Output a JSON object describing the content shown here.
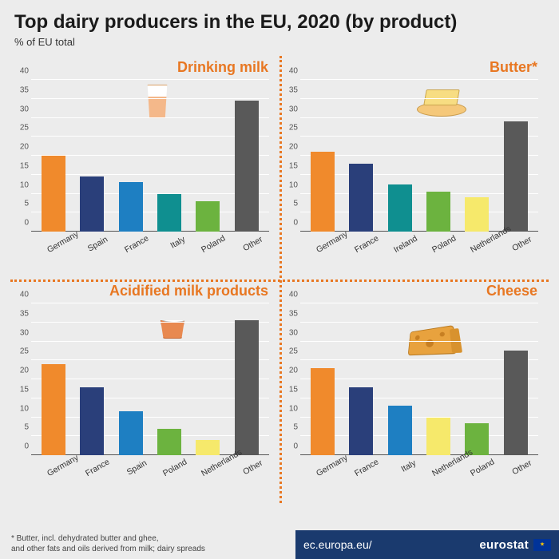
{
  "title": "Top dairy producers in the EU, 2020 (by product)",
  "subtitle": "% of EU total",
  "footnote_l1": "* Butter, incl. dehydrated butter and ghee,",
  "footnote_l2": "and other fats and oils derived from milk; dairy spreads",
  "source_url": "ec.europa.eu/",
  "source_brand": "eurostat",
  "accent_color": "#e87722",
  "grid_color": "#ffffff",
  "background_color": "#ececec",
  "bar_palette": {
    "orange": "#f08a2c",
    "darkblue": "#2a3f7a",
    "midblue": "#1e7fc2",
    "teal": "#0f8f90",
    "green": "#6cb33f",
    "yellow": "#f6e96b",
    "grey": "#595959"
  },
  "ylim": [
    0,
    40
  ],
  "ytick_step": 5,
  "panels": [
    {
      "key": "drinking_milk",
      "title": "Drinking milk",
      "bars": [
        {
          "label": "Germany",
          "value": 20,
          "color": "orange"
        },
        {
          "label": "Spain",
          "value": 14.5,
          "color": "darkblue"
        },
        {
          "label": "France",
          "value": 13,
          "color": "midblue"
        },
        {
          "label": "Italy",
          "value": 10,
          "color": "teal"
        },
        {
          "label": "Poland",
          "value": 8,
          "color": "green"
        },
        {
          "label": "Other",
          "value": 34.5,
          "color": "grey"
        }
      ]
    },
    {
      "key": "butter",
      "title": "Butter*",
      "bars": [
        {
          "label": "Germany",
          "value": 21,
          "color": "orange"
        },
        {
          "label": "France",
          "value": 18,
          "color": "darkblue"
        },
        {
          "label": "Ireland",
          "value": 12.5,
          "color": "teal"
        },
        {
          "label": "Poland",
          "value": 10.5,
          "color": "green"
        },
        {
          "label": "Netherlands",
          "value": 9,
          "color": "yellow"
        },
        {
          "label": "Other",
          "value": 29,
          "color": "grey"
        }
      ]
    },
    {
      "key": "acidified",
      "title": "Acidified milk products",
      "bars": [
        {
          "label": "Germany",
          "value": 24,
          "color": "orange"
        },
        {
          "label": "France",
          "value": 18,
          "color": "darkblue"
        },
        {
          "label": "Spain",
          "value": 11.5,
          "color": "midblue"
        },
        {
          "label": "Poland",
          "value": 7,
          "color": "green"
        },
        {
          "label": "Netherlands",
          "value": 4,
          "color": "yellow"
        },
        {
          "label": "Other",
          "value": 35.5,
          "color": "grey"
        }
      ]
    },
    {
      "key": "cheese",
      "title": "Cheese",
      "bars": [
        {
          "label": "Germany",
          "value": 23,
          "color": "orange"
        },
        {
          "label": "France",
          "value": 18,
          "color": "darkblue"
        },
        {
          "label": "Italy",
          "value": 13,
          "color": "midblue"
        },
        {
          "label": "Netherlands",
          "value": 10,
          "color": "yellow"
        },
        {
          "label": "Poland",
          "value": 8.5,
          "color": "green"
        },
        {
          "label": "Other",
          "value": 27.5,
          "color": "grey"
        }
      ]
    }
  ]
}
